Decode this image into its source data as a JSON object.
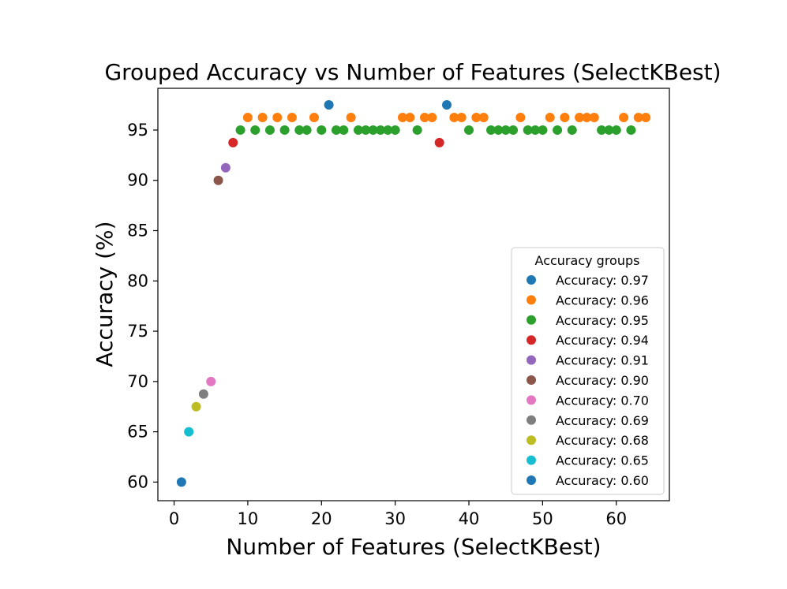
{
  "chart_data": {
    "type": "scatter",
    "title": "Grouped Accuracy vs Number of Features (SelectKBest)",
    "xlabel": "Number of Features (SelectKBest)",
    "ylabel": "Accuracy (%)",
    "xlim": [
      -2.2,
      67.2
    ],
    "ylim": [
      58.15,
      99.15
    ],
    "xticks": [
      0,
      10,
      20,
      30,
      40,
      50,
      60
    ],
    "yticks": [
      60,
      65,
      70,
      75,
      80,
      85,
      90,
      95
    ],
    "grid": false,
    "legend": {
      "title": "Accuracy groups",
      "position": "lower-right"
    },
    "series": [
      {
        "name": "Accuracy: 0.97",
        "color": "#1f77b4",
        "x": [
          21,
          37
        ],
        "y": [
          97.5,
          97.5
        ]
      },
      {
        "name": "Accuracy: 0.96",
        "color": "#ff7f0e",
        "x": [
          10,
          12,
          14,
          16,
          19,
          24,
          31,
          32,
          34,
          35,
          38,
          39,
          41,
          42,
          47,
          51,
          53,
          55,
          56,
          57,
          61,
          63,
          64
        ],
        "y": [
          96.25,
          96.25,
          96.25,
          96.25,
          96.25,
          96.25,
          96.25,
          96.25,
          96.25,
          96.25,
          96.25,
          96.25,
          96.25,
          96.25,
          96.25,
          96.25,
          96.25,
          96.25,
          96.25,
          96.25,
          96.25,
          96.25,
          96.25
        ]
      },
      {
        "name": "Accuracy: 0.95",
        "color": "#2ca02c",
        "x": [
          9,
          11,
          13,
          15,
          17,
          18,
          20,
          22,
          23,
          25,
          26,
          27,
          28,
          29,
          30,
          33,
          40,
          43,
          44,
          45,
          46,
          48,
          49,
          50,
          52,
          54,
          58,
          59,
          60,
          62
        ],
        "y": [
          95,
          95,
          95,
          95,
          95,
          95,
          95,
          95,
          95,
          95,
          95,
          95,
          95,
          95,
          95,
          95,
          95,
          95,
          95,
          95,
          95,
          95,
          95,
          95,
          95,
          95,
          95,
          95,
          95,
          95
        ]
      },
      {
        "name": "Accuracy: 0.94",
        "color": "#d62728",
        "x": [
          8,
          36
        ],
        "y": [
          93.75,
          93.75
        ]
      },
      {
        "name": "Accuracy: 0.91",
        "color": "#9467bd",
        "x": [
          7
        ],
        "y": [
          91.25
        ]
      },
      {
        "name": "Accuracy: 0.90",
        "color": "#8c564b",
        "x": [
          6
        ],
        "y": [
          90
        ]
      },
      {
        "name": "Accuracy: 0.70",
        "color": "#e377c2",
        "x": [
          5
        ],
        "y": [
          70
        ]
      },
      {
        "name": "Accuracy: 0.69",
        "color": "#7f7f7f",
        "x": [
          4
        ],
        "y": [
          68.75
        ]
      },
      {
        "name": "Accuracy: 0.68",
        "color": "#bcbd22",
        "x": [
          3
        ],
        "y": [
          67.5
        ]
      },
      {
        "name": "Accuracy: 0.65",
        "color": "#17becf",
        "x": [
          2
        ],
        "y": [
          65
        ]
      },
      {
        "name": "Accuracy: 0.60",
        "color": "#1f77b4",
        "x": [
          1
        ],
        "y": [
          60
        ]
      }
    ]
  }
}
